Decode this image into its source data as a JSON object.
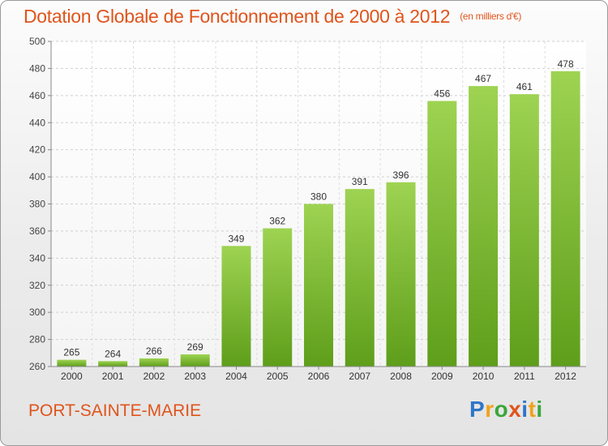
{
  "title": "Dotation Globale de Fonctionnement de 2000 à 2012",
  "unit_note": "(en milliers d'€)",
  "town": "PORT-SAINTE-MARIE",
  "logo": {
    "letters": [
      "P",
      "r",
      "o",
      "x",
      "i",
      "t",
      "i"
    ],
    "colors": [
      "#2f76c8",
      "#f0a21c",
      "#3aa63a",
      "#e0541c",
      "#2f76c8",
      "#f0a21c",
      "#3aa63a"
    ]
  },
  "chart_data": {
    "type": "bar",
    "categories": [
      "2000",
      "2001",
      "2002",
      "2003",
      "2004",
      "2005",
      "2006",
      "2007",
      "2008",
      "2009",
      "2010",
      "2011",
      "2012"
    ],
    "values": [
      265,
      264,
      266,
      269,
      349,
      362,
      380,
      391,
      396,
      456,
      467,
      461,
      478
    ],
    "ylim": [
      260,
      500
    ],
    "yticks": [
      260,
      280,
      300,
      320,
      340,
      360,
      380,
      400,
      420,
      440,
      460,
      480,
      500
    ],
    "grid": true,
    "bar_color": "#7cbf36"
  }
}
